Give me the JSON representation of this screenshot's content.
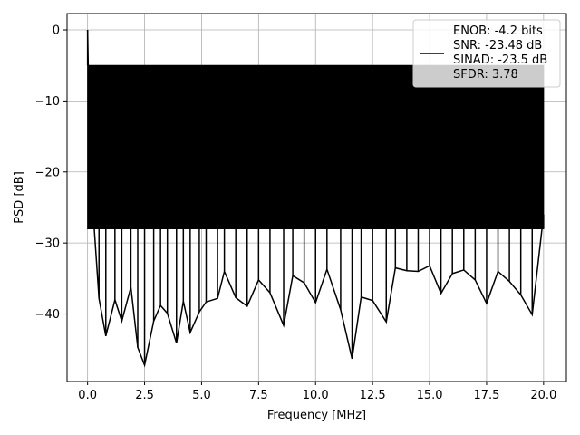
{
  "chart_data": {
    "type": "line",
    "xlabel": "Frequency [MHz]",
    "ylabel": "PSD [dB]",
    "xlim": [
      -0.9,
      21.0
    ],
    "ylim": [
      -49.5,
      2.3
    ],
    "xticks": [
      0.0,
      2.5,
      5.0,
      7.5,
      10.0,
      12.5,
      15.0,
      17.5,
      20.0
    ],
    "xtick_labels": [
      "0.0",
      "2.5",
      "5.0",
      "7.5",
      "10.0",
      "12.5",
      "15.0",
      "17.5",
      "20.0"
    ],
    "yticks": [
      0,
      -10,
      -20,
      -30,
      -40
    ],
    "ytick_labels": [
      "0",
      "−10",
      "−20",
      "−30",
      "−40"
    ],
    "grid": true,
    "legend_position": "top-right",
    "series": [
      {
        "name": "ENOB: -4.2 bits\nSNR: -23.48 dB\nSINAD: -23.5 dB\nSFDR: 3.78",
        "color": "#000000",
        "noise_band_db": [
          -28,
          -5
        ],
        "x": [
          0.0,
          0.05,
          0.1,
          0.25,
          0.5,
          0.8,
          1.2,
          1.5,
          1.9,
          2.2,
          2.5,
          2.9,
          3.2,
          3.5,
          3.9,
          4.2,
          4.5,
          4.9,
          5.2,
          5.7,
          6.0,
          6.5,
          7.0,
          7.5,
          8.0,
          8.6,
          9.0,
          9.5,
          10.0,
          10.5,
          11.1,
          11.6,
          12.0,
          12.5,
          13.1,
          13.5,
          14.0,
          14.5,
          15.0,
          15.5,
          16.0,
          16.5,
          17.0,
          17.5,
          18.0,
          18.5,
          19.0,
          19.5,
          20.0
        ],
        "y": [
          0.0,
          -9.0,
          -21.0,
          -26.0,
          -37.8,
          -43.1,
          -38.0,
          -41.0,
          -36.2,
          -44.7,
          -47.2,
          -41.0,
          -38.8,
          -39.9,
          -44.1,
          -38.2,
          -42.6,
          -39.7,
          -38.3,
          -37.8,
          -34.0,
          -37.7,
          -38.9,
          -35.2,
          -37.0,
          -41.6,
          -34.6,
          -35.6,
          -38.4,
          -33.7,
          -39.4,
          -46.3,
          -37.6,
          -38.1,
          -41.1,
          -33.5,
          -33.9,
          -34.0,
          -33.2,
          -37.1,
          -34.3,
          -33.8,
          -35.2,
          -38.5,
          -34.0,
          -35.4,
          -37.3,
          -40.1,
          -26.0
        ]
      }
    ]
  }
}
